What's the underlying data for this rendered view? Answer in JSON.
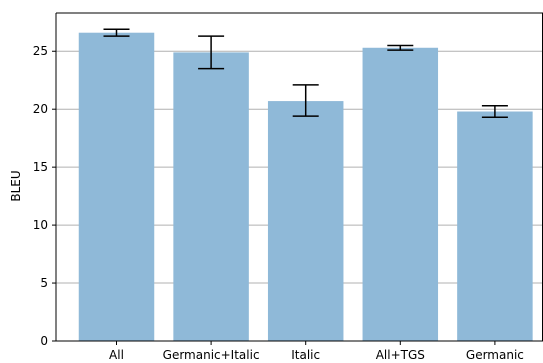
{
  "chart_data": {
    "type": "bar",
    "title": "",
    "xlabel": "",
    "ylabel": "BLEU",
    "categories": [
      "All",
      "Germanic+Italic",
      "Italic",
      "All+TGS",
      "Germanic"
    ],
    "values": [
      26.6,
      24.9,
      20.7,
      25.3,
      19.8
    ],
    "error_low": [
      26.3,
      23.5,
      19.4,
      25.1,
      19.3
    ],
    "error_high": [
      26.9,
      26.3,
      22.1,
      25.5,
      20.3
    ],
    "ylim": [
      0,
      28.3
    ],
    "yticks": [
      0,
      5,
      10,
      15,
      20,
      25
    ],
    "grid": "horizontal",
    "bar_color": "#8fb9d8",
    "error_color": "#000000",
    "grid_color": "#b0b0b0"
  }
}
